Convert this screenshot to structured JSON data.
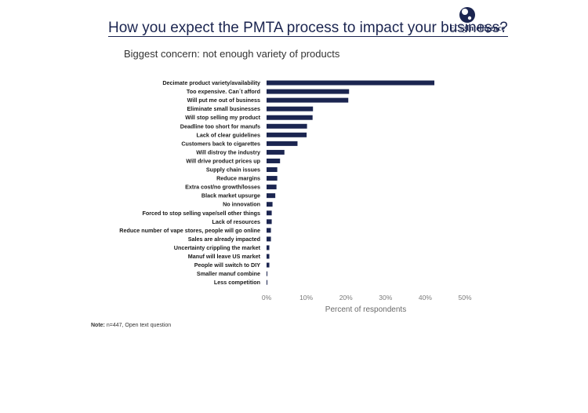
{
  "page": {
    "title": "How you expect the PMTA process to impact your business?",
    "subtitle": "Biggest concern: not enough variety of products",
    "logo": {
      "prefix": "ECig",
      "suffix": "Intelligence"
    },
    "note_label": "Note:",
    "note_text": "n=447, Open text question"
  },
  "colors": {
    "bar": "#1b2550",
    "title": "#1b2550"
  },
  "chart_data": {
    "type": "bar",
    "orientation": "horizontal",
    "title": "Biggest concern: not enough variety of products",
    "xlabel": "Percent of respondents",
    "ylabel": "",
    "xlim": [
      0,
      50
    ],
    "xticks": [
      0,
      10,
      20,
      30,
      40,
      50
    ],
    "tick_suffix": "%",
    "grid": false,
    "legend": "none",
    "categories": [
      "Decimate product variety/availability",
      "Too expensive. Can´t afford",
      "Will put me out of business",
      "Eliminate small businesses",
      "Will stop selling my product",
      "Deadline too short for manufs",
      "Lack of clear guidelines",
      "Customers back to cigarettes",
      "Will distroy the industry",
      "Will drive product prices up",
      "Supply chain issues",
      "Reduce margins",
      "Extra cost/no growth/losses",
      "Black market upsurge",
      "No innovation",
      "Forced to stop selling vape/sell other things",
      "Lack of resources",
      "Reduce number of vape stores, people will go online",
      "Sales are already impacted",
      "Uncertainty crippling the market",
      "Manuf will leave US market",
      "People will switch to DIY",
      "Smaller manuf combine",
      "Less competition"
    ],
    "values": [
      42.3,
      20.8,
      20.6,
      11.7,
      11.6,
      10.2,
      10.1,
      7.8,
      4.5,
      3.4,
      2.7,
      2.7,
      2.5,
      2.2,
      1.5,
      1.3,
      1.3,
      1.1,
      1.1,
      0.7,
      0.7,
      0.7,
      0.2,
      0.2
    ]
  }
}
